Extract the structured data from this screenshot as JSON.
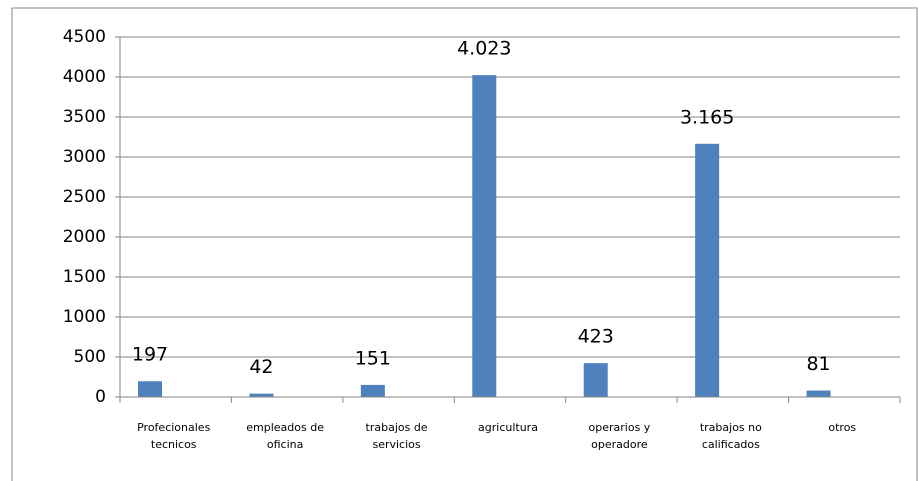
{
  "chart_data": {
    "type": "bar",
    "categories": [
      "Profecionales tecnicos",
      "empleados de oficina",
      "trabajos de servicios",
      "agricultura",
      "operarios y operadore",
      "trabajos no calificados",
      "otros"
    ],
    "values": [
      197,
      42,
      151,
      4023,
      423,
      3165,
      81
    ],
    "value_labels": [
      "197",
      "42",
      "151",
      "4.023",
      "423",
      "3.165",
      "81"
    ],
    "color": "#4f81bd",
    "ylim": [
      0,
      4500
    ],
    "yticks": [
      0,
      500,
      1000,
      1500,
      2000,
      2500,
      3000,
      3500,
      4000,
      4500
    ],
    "grid": true
  }
}
